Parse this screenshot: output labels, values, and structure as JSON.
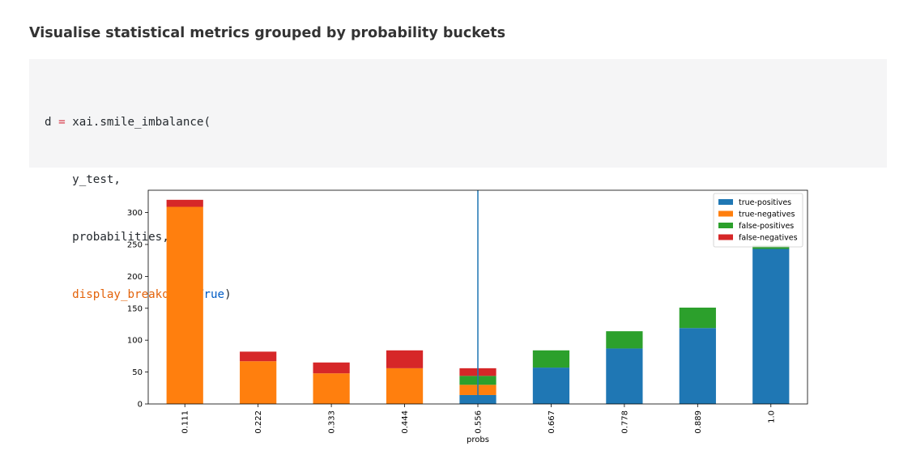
{
  "heading": "Visualise statistical metrics grouped by probability buckets",
  "code": {
    "line1_var": "d",
    "line1_op": "=",
    "line1_call": "xai.smile_imbalance(",
    "line2": "y_test,",
    "line3": "probabilities,",
    "line4_param": "display_breakdown",
    "line4_eq": "=",
    "line4_value": "True",
    "line4_close": ")"
  },
  "chart_data": {
    "type": "bar",
    "stacked": true,
    "categories": [
      "0.111",
      "0.222",
      "0.333",
      "0.444",
      "0.556",
      "0.667",
      "0.778",
      "0.889",
      "1.0"
    ],
    "xlabel": "probs",
    "ylabel": "",
    "ylim": [
      0,
      335
    ],
    "yticks": [
      0,
      50,
      100,
      150,
      200,
      250,
      300
    ],
    "series": [
      {
        "name": "true-positives",
        "color": "#1f77b4",
        "values": [
          0,
          0,
          0,
          0,
          14,
          57,
          87,
          119,
          243
        ]
      },
      {
        "name": "true-negatives",
        "color": "#ff7f0e",
        "values": [
          309,
          67,
          48,
          56,
          16,
          0,
          0,
          0,
          0
        ]
      },
      {
        "name": "false-positives",
        "color": "#2ca02c",
        "values": [
          0,
          0,
          0,
          0,
          14,
          27,
          27,
          32,
          5
        ]
      },
      {
        "name": "false-negatives",
        "color": "#d62728",
        "values": [
          11,
          15,
          17,
          28,
          12,
          0,
          0,
          0,
          0
        ]
      }
    ],
    "vertical_line": {
      "category": "0.556",
      "color": "#1f77b4"
    },
    "legend_position": "top-right"
  }
}
